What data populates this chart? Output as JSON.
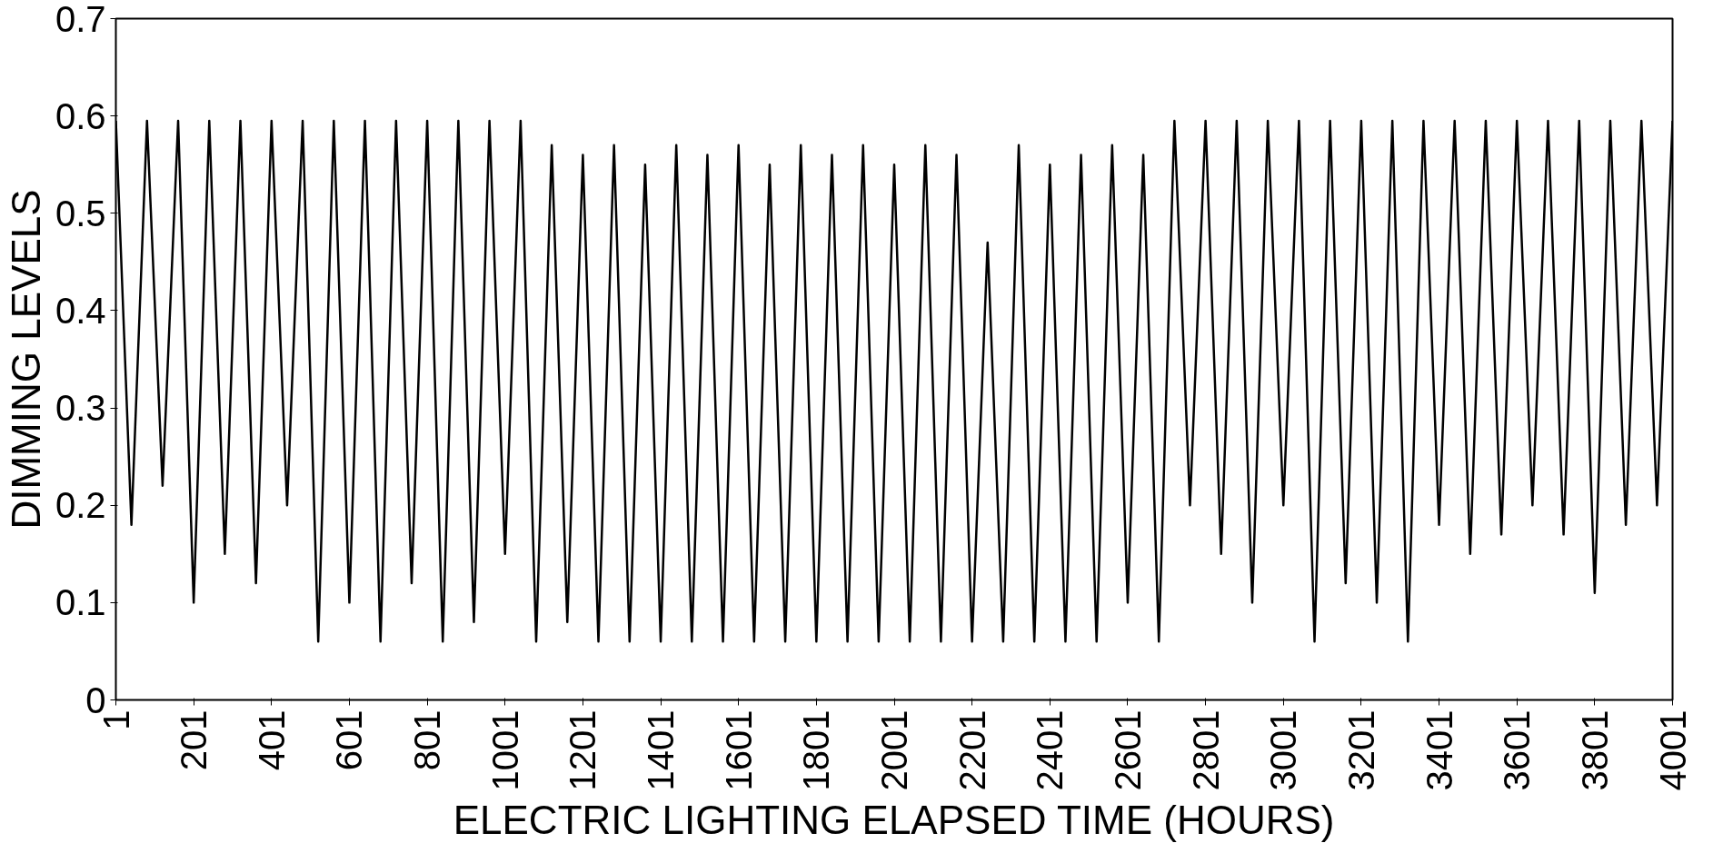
{
  "chart_data": {
    "type": "line",
    "xlabel": "ELECTRIC LIGHTING ELAPSED TIME (HOURS)",
    "ylabel": "DIMMING LEVELS",
    "x": [
      1,
      41,
      81,
      121,
      161,
      201,
      241,
      281,
      321,
      361,
      401,
      441,
      481,
      521,
      561,
      601,
      641,
      681,
      721,
      761,
      801,
      841,
      881,
      921,
      961,
      1001,
      1041,
      1081,
      1121,
      1161,
      1201,
      1241,
      1281,
      1321,
      1361,
      1401,
      1441,
      1481,
      1521,
      1561,
      1601,
      1641,
      1681,
      1721,
      1761,
      1801,
      1841,
      1881,
      1921,
      1961,
      2001,
      2041,
      2081,
      2121,
      2161,
      2201,
      2241,
      2281,
      2321,
      2361,
      2401,
      2441,
      2481,
      2521,
      2561,
      2601,
      2641,
      2681,
      2721,
      2761,
      2801,
      2841,
      2881,
      2921,
      2961,
      3001,
      3041,
      3081,
      3121,
      3161,
      3201,
      3241,
      3281,
      3321,
      3361,
      3401,
      3441,
      3481,
      3521,
      3561,
      3601,
      3641,
      3681,
      3721,
      3761,
      3801,
      3841,
      3881,
      3921,
      3961,
      4001
    ],
    "series": [
      {
        "color": "#000000",
        "values": [
          0.595,
          0.18,
          0.595,
          0.22,
          0.595,
          0.1,
          0.595,
          0.15,
          0.595,
          0.12,
          0.595,
          0.2,
          0.595,
          0.06,
          0.595,
          0.1,
          0.595,
          0.06,
          0.595,
          0.12,
          0.595,
          0.06,
          0.595,
          0.08,
          0.595,
          0.15,
          0.595,
          0.06,
          0.57,
          0.08,
          0.56,
          0.06,
          0.57,
          0.06,
          0.55,
          0.06,
          0.57,
          0.06,
          0.56,
          0.06,
          0.57,
          0.06,
          0.55,
          0.06,
          0.57,
          0.06,
          0.56,
          0.06,
          0.57,
          0.06,
          0.55,
          0.06,
          0.57,
          0.06,
          0.56,
          0.06,
          0.47,
          0.06,
          0.57,
          0.06,
          0.55,
          0.06,
          0.56,
          0.06,
          0.57,
          0.1,
          0.56,
          0.06,
          0.595,
          0.2,
          0.595,
          0.15,
          0.595,
          0.1,
          0.595,
          0.2,
          0.595,
          0.06,
          0.595,
          0.12,
          0.595,
          0.1,
          0.595,
          0.06,
          0.595,
          0.18,
          0.595,
          0.15,
          0.595,
          0.17,
          0.595,
          0.2,
          0.595,
          0.17,
          0.595,
          0.11,
          0.595,
          0.18,
          0.595,
          0.2,
          0.595
        ]
      }
    ],
    "xlim": [
      1,
      4001
    ],
    "xticks": [
      1,
      201,
      401,
      601,
      801,
      1001,
      1201,
      1401,
      1601,
      1801,
      2001,
      2201,
      2401,
      2601,
      2801,
      3001,
      3201,
      3401,
      3601,
      3801,
      4001
    ],
    "ylim": [
      0,
      0.7
    ],
    "yticks": [
      0,
      0.1,
      0.2,
      0.3,
      0.4,
      0.5,
      0.6,
      0.7
    ],
    "grid": false,
    "marker": "none",
    "line_style": "solid"
  }
}
